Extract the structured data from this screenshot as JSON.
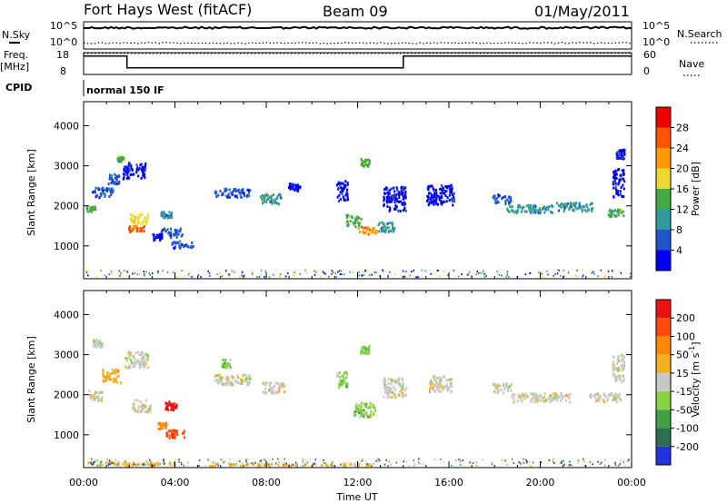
{
  "header": {
    "station": "Fort Hays West (fitACF)",
    "beam": "Beam 09",
    "date": "01/May/2011"
  },
  "labels": {
    "nsky": "N.Sky",
    "nsearch": "N.Search",
    "freq": "Freq.",
    "freq_unit": "[MHz]",
    "nave": "Nave",
    "cpid": "CPID",
    "cpid_value": "normal 150 IF",
    "slant_range": "Slant Range [km]",
    "power_label": "Power [dB]",
    "velocity_label": "Velocity [m s",
    "velocity_exp": "-1",
    "velocity_close": "]",
    "time_label": "Time UT"
  },
  "chart_data": [
    {
      "type": "line",
      "name": "noise",
      "y_left_ticks": [
        "10^5",
        "10^0"
      ],
      "y_right_ticks": [
        "10^5",
        "10^0"
      ],
      "sky_level": 0.78,
      "search_level": 0.22
    },
    {
      "type": "line",
      "name": "frequency-nave",
      "y_left_ticks": [
        "18",
        "8"
      ],
      "y_right_ticks": [
        "60",
        "0"
      ],
      "ylim_left": [
        8,
        18
      ],
      "ylim_right": [
        0,
        60
      ],
      "frequency": [
        {
          "t": 0.0,
          "f": 16.4
        },
        {
          "t": 1.9,
          "f": 16.4
        },
        {
          "t": 1.9,
          "f": 11.0
        },
        {
          "t": 14.0,
          "f": 11.0
        },
        {
          "t": 14.0,
          "f": 16.4
        },
        {
          "t": 24.0,
          "f": 16.4
        }
      ],
      "nave_level": 58
    },
    {
      "type": "heatmap",
      "name": "power",
      "ylabel": "Slant Range [km]",
      "ylim": [
        180,
        4600
      ],
      "y_ticks": [
        1000,
        2000,
        3000,
        4000
      ],
      "colorbar_ticks": [
        "28",
        "24",
        "20",
        "16",
        "12",
        "8",
        "4"
      ],
      "colors": [
        "#0000f0",
        "#2255cc",
        "#3399a0",
        "#44aa44",
        "#eed830",
        "#ff9a00",
        "#ff5500",
        "#ee0000"
      ],
      "blobs": [
        {
          "t": 0.3,
          "r": 1950,
          "dt": 0.4,
          "dr": 120,
          "lvl": 3
        },
        {
          "t": 0.8,
          "r": 2350,
          "dt": 0.9,
          "dr": 260,
          "lvl": 1
        },
        {
          "t": 1.3,
          "r": 2700,
          "dt": 0.5,
          "dr": 250,
          "lvl": 1
        },
        {
          "t": 2.2,
          "r": 2900,
          "dt": 1.0,
          "dr": 400,
          "lvl": 0
        },
        {
          "t": 1.6,
          "r": 3200,
          "dt": 0.3,
          "dr": 150,
          "lvl": 3
        },
        {
          "t": 2.4,
          "r": 1700,
          "dt": 0.8,
          "dr": 250,
          "lvl": 4
        },
        {
          "t": 2.3,
          "r": 1450,
          "dt": 0.7,
          "dr": 150,
          "lvl": 6
        },
        {
          "t": 3.6,
          "r": 1800,
          "dt": 0.5,
          "dr": 150,
          "lvl": 2
        },
        {
          "t": 3.8,
          "r": 1350,
          "dt": 1.0,
          "dr": 220,
          "lvl": 1
        },
        {
          "t": 4.3,
          "r": 1050,
          "dt": 1.0,
          "dr": 200,
          "lvl": 1
        },
        {
          "t": 3.2,
          "r": 1250,
          "dt": 0.4,
          "dr": 150,
          "lvl": 0
        },
        {
          "t": 6.5,
          "r": 2350,
          "dt": 1.6,
          "dr": 220,
          "lvl": 1
        },
        {
          "t": 8.2,
          "r": 2200,
          "dt": 1.0,
          "dr": 250,
          "lvl": 2
        },
        {
          "t": 9.2,
          "r": 2500,
          "dt": 0.5,
          "dr": 200,
          "lvl": 0
        },
        {
          "t": 11.3,
          "r": 2400,
          "dt": 0.5,
          "dr": 500,
          "lvl": 0
        },
        {
          "t": 11.8,
          "r": 1650,
          "dt": 0.7,
          "dr": 300,
          "lvl": 3
        },
        {
          "t": 12.4,
          "r": 1400,
          "dt": 0.8,
          "dr": 180,
          "lvl": 5
        },
        {
          "t": 13.2,
          "r": 1500,
          "dt": 0.8,
          "dr": 250,
          "lvl": 2
        },
        {
          "t": 13.6,
          "r": 2200,
          "dt": 1.0,
          "dr": 600,
          "lvl": 0
        },
        {
          "t": 12.3,
          "r": 3100,
          "dt": 0.4,
          "dr": 200,
          "lvl": 3
        },
        {
          "t": 15.6,
          "r": 2300,
          "dt": 1.2,
          "dr": 500,
          "lvl": 0
        },
        {
          "t": 18.3,
          "r": 2200,
          "dt": 0.8,
          "dr": 250,
          "lvl": 1
        },
        {
          "t": 19.5,
          "r": 1950,
          "dt": 2.0,
          "dr": 200,
          "lvl": 2
        },
        {
          "t": 21.5,
          "r": 2000,
          "dt": 1.6,
          "dr": 220,
          "lvl": 2
        },
        {
          "t": 23.3,
          "r": 1850,
          "dt": 0.7,
          "dr": 180,
          "lvl": 3
        },
        {
          "t": 23.4,
          "r": 2600,
          "dt": 0.5,
          "dr": 700,
          "lvl": 0
        },
        {
          "t": 23.5,
          "r": 3300,
          "dt": 0.4,
          "dr": 250,
          "lvl": 0
        }
      ]
    },
    {
      "type": "heatmap",
      "name": "velocity",
      "ylabel": "Slant Range [km]",
      "ylim": [
        180,
        4600
      ],
      "y_ticks": [
        1000,
        2000,
        3000,
        4000
      ],
      "colorbar_ticks": [
        "200",
        "100",
        "50",
        "15",
        "-15",
        "-50",
        "-100",
        "-200"
      ],
      "colors": [
        "#2233dd",
        "#2c6e50",
        "#44a044",
        "#88d044",
        "#c8c8c8",
        "#f2b020",
        "#ff8800",
        "#ff4a10",
        "#ee1111"
      ],
      "blobs": [
        {
          "t": 0.5,
          "r": 2000,
          "dt": 0.6,
          "dr": 250,
          "lvl": 4
        },
        {
          "t": 0.6,
          "r": 3300,
          "dt": 0.4,
          "dr": 200,
          "lvl": 4
        },
        {
          "t": 1.2,
          "r": 2500,
          "dt": 0.8,
          "dr": 350,
          "lvl": 5
        },
        {
          "t": 2.3,
          "r": 2900,
          "dt": 1.0,
          "dr": 400,
          "lvl": 4
        },
        {
          "t": 2.5,
          "r": 1750,
          "dt": 0.8,
          "dr": 300,
          "lvl": 4
        },
        {
          "t": 3.8,
          "r": 1750,
          "dt": 0.5,
          "dr": 200,
          "lvl": 8
        },
        {
          "t": 4.0,
          "r": 1050,
          "dt": 0.9,
          "dr": 200,
          "lvl": 7
        },
        {
          "t": 3.4,
          "r": 1250,
          "dt": 0.4,
          "dr": 150,
          "lvl": 6
        },
        {
          "t": 6.5,
          "r": 2400,
          "dt": 1.6,
          "dr": 250,
          "lvl": 4
        },
        {
          "t": 8.3,
          "r": 2200,
          "dt": 1.0,
          "dr": 280,
          "lvl": 4
        },
        {
          "t": 6.2,
          "r": 2800,
          "dt": 0.4,
          "dr": 200,
          "lvl": 3
        },
        {
          "t": 11.3,
          "r": 2400,
          "dt": 0.5,
          "dr": 400,
          "lvl": 3
        },
        {
          "t": 12.3,
          "r": 1650,
          "dt": 1.0,
          "dr": 350,
          "lvl": 3
        },
        {
          "t": 12.3,
          "r": 3150,
          "dt": 0.4,
          "dr": 200,
          "lvl": 3
        },
        {
          "t": 13.6,
          "r": 2200,
          "dt": 1.0,
          "dr": 500,
          "lvl": 4
        },
        {
          "t": 15.6,
          "r": 2300,
          "dt": 1.0,
          "dr": 400,
          "lvl": 4
        },
        {
          "t": 18.3,
          "r": 2200,
          "dt": 0.8,
          "dr": 250,
          "lvl": 4
        },
        {
          "t": 20.0,
          "r": 1950,
          "dt": 2.6,
          "dr": 220,
          "lvl": 4
        },
        {
          "t": 22.8,
          "r": 1950,
          "dt": 1.4,
          "dr": 220,
          "lvl": 4
        },
        {
          "t": 23.4,
          "r": 2700,
          "dt": 0.5,
          "dr": 700,
          "lvl": 4
        },
        {
          "t": 2.0,
          "r": 300,
          "dt": 4.0,
          "dr": 80,
          "lvl": 5
        },
        {
          "t": 9.0,
          "r": 280,
          "dt": 7.0,
          "dr": 60,
          "lvl": 5
        }
      ]
    }
  ],
  "x_axis": {
    "label": "Time UT",
    "range": [
      0,
      24
    ],
    "ticks": [
      "00:00",
      "04:00",
      "08:00",
      "12:00",
      "16:00",
      "20:00",
      "00:00"
    ]
  },
  "colors": {
    "axis": "#000000",
    "background": "#ffffff"
  }
}
